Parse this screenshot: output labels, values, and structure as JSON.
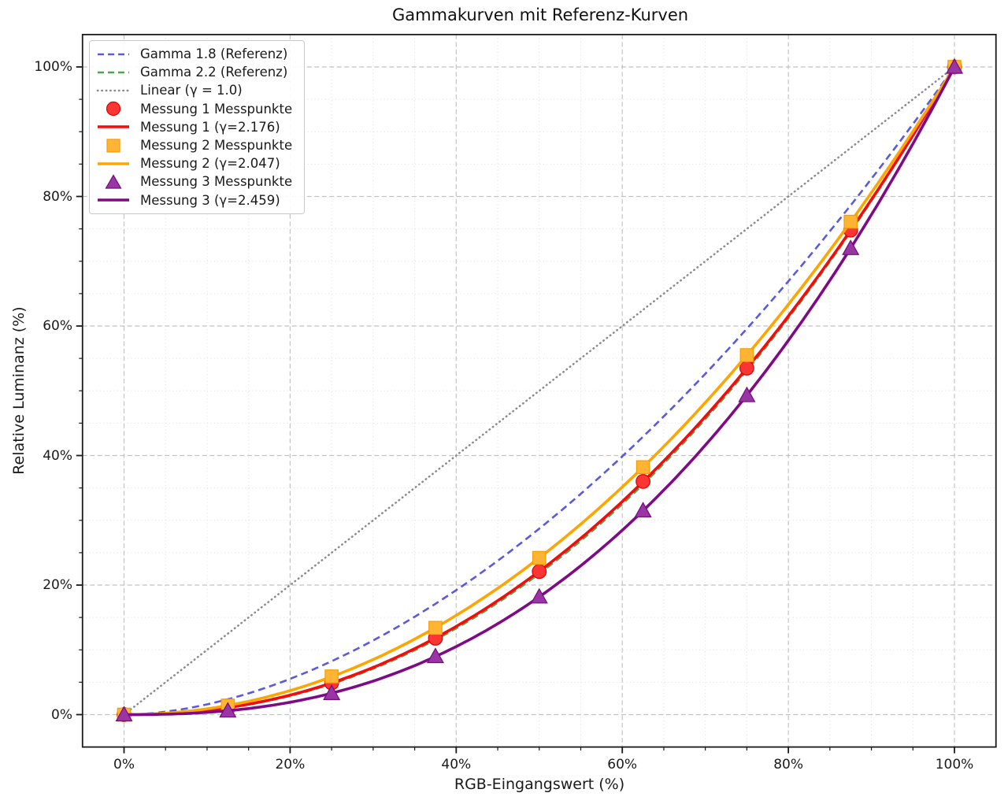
{
  "figure": {
    "background": "#ffffff",
    "text_color": "#1a1a1a",
    "spine_color": "#1a1a1a",
    "grid_major_color": "#b8b8b8",
    "grid_minor_color": "#dedede"
  },
  "chart_data": {
    "type": "line",
    "title": "Gammakurven mit Referenz-Kurven",
    "xlabel": "RGB-Eingangswert (%)",
    "ylabel": "Relative Luminanz (%)",
    "axes": {
      "xlim": [
        -5,
        105
      ],
      "ylim": [
        -5,
        105
      ],
      "major_step": 20,
      "minor_step": 5,
      "xtick_values": [
        0,
        20,
        40,
        60,
        80,
        100
      ],
      "xtick_labels": [
        "0%",
        "20%",
        "40%",
        "60%",
        "80%",
        "100%"
      ],
      "ytick_values": [
        0,
        20,
        40,
        60,
        80,
        100
      ],
      "ytick_labels": [
        "0%",
        "20%",
        "40%",
        "60%",
        "80%",
        "100%"
      ],
      "grid_major": "dashed",
      "grid_minor": "dotted"
    },
    "series": {
      "reference": [
        {
          "name": "Gamma 1.8 (Referenz)",
          "gamma": 1.8,
          "color": "#5a5ae0",
          "line": "dashed"
        },
        {
          "name": "Gamma 2.2 (Referenz)",
          "gamma": 2.2,
          "color": "#4da64d",
          "line": "dashed"
        },
        {
          "name": "Linear (γ = 1.0)",
          "gamma": 1.0,
          "color": "#8c8c8c",
          "line": "dotted"
        }
      ],
      "measurements": [
        {
          "points_name": "Messung 1 Messpunkte",
          "fit_name": "Messung 1 (γ=2.176)",
          "gamma": 2.176,
          "marker": "circle",
          "line_color": "#f20d0d",
          "marker_fill": "#fb3434",
          "marker_edge": "#e00000",
          "x": [
            0,
            12.5,
            25,
            37.5,
            50,
            62.5,
            75,
            87.5,
            100
          ],
          "y": [
            0,
            0.9,
            4.9,
            11.8,
            22.1,
            36.0,
            53.5,
            74.8,
            100
          ]
        },
        {
          "points_name": "Messung 2 Messpunkte",
          "fit_name": "Messung 2 (γ=2.047)",
          "gamma": 2.047,
          "marker": "square",
          "line_color": "#ffa500",
          "marker_fill": "#ffb434",
          "marker_edge": "#f29d00",
          "x": [
            0,
            12.5,
            25,
            37.5,
            50,
            62.5,
            75,
            87.5,
            100
          ],
          "y": [
            0,
            1.4,
            5.9,
            13.4,
            24.2,
            38.2,
            55.5,
            76.1,
            100
          ]
        },
        {
          "points_name": "Messung 3 Messpunkte",
          "fit_name": "Messung 3 (γ=2.459)",
          "gamma": 2.459,
          "marker": "triangle",
          "line_color": "#7e0a86",
          "marker_fill": "#9a35a5",
          "marker_edge": "#730c7d",
          "x": [
            0,
            12.5,
            25,
            37.5,
            50,
            62.5,
            75,
            87.5,
            100
          ],
          "y": [
            0,
            0.6,
            3.3,
            9.0,
            18.2,
            31.5,
            49.3,
            72.0,
            100
          ]
        }
      ]
    },
    "legend": {
      "position": "upper left",
      "entries": [
        {
          "label": "Gamma 1.8 (Referenz)",
          "swatch": "dashed-line",
          "color": "#5a5ae0"
        },
        {
          "label": "Gamma 2.2 (Referenz)",
          "swatch": "dashed-line",
          "color": "#4da64d"
        },
        {
          "label": "Linear (γ = 1.0)",
          "swatch": "dotted-line",
          "color": "#8c8c8c"
        },
        {
          "label": "Messung 1 Messpunkte",
          "swatch": "circle",
          "color": "#fb3434",
          "edge": "#e00000"
        },
        {
          "label": "Messung 1 (γ=2.176)",
          "swatch": "solid-line",
          "color": "#f20d0d"
        },
        {
          "label": "Messung 2 Messpunkte",
          "swatch": "square",
          "color": "#ffb434",
          "edge": "#f29d00"
        },
        {
          "label": "Messung 2 (γ=2.047)",
          "swatch": "solid-line",
          "color": "#ffa500"
        },
        {
          "label": "Messung 3 Messpunkte",
          "swatch": "triangle",
          "color": "#9a35a5",
          "edge": "#730c7d"
        },
        {
          "label": "Messung 3 (γ=2.459)",
          "swatch": "solid-line",
          "color": "#7e0a86"
        }
      ]
    }
  }
}
